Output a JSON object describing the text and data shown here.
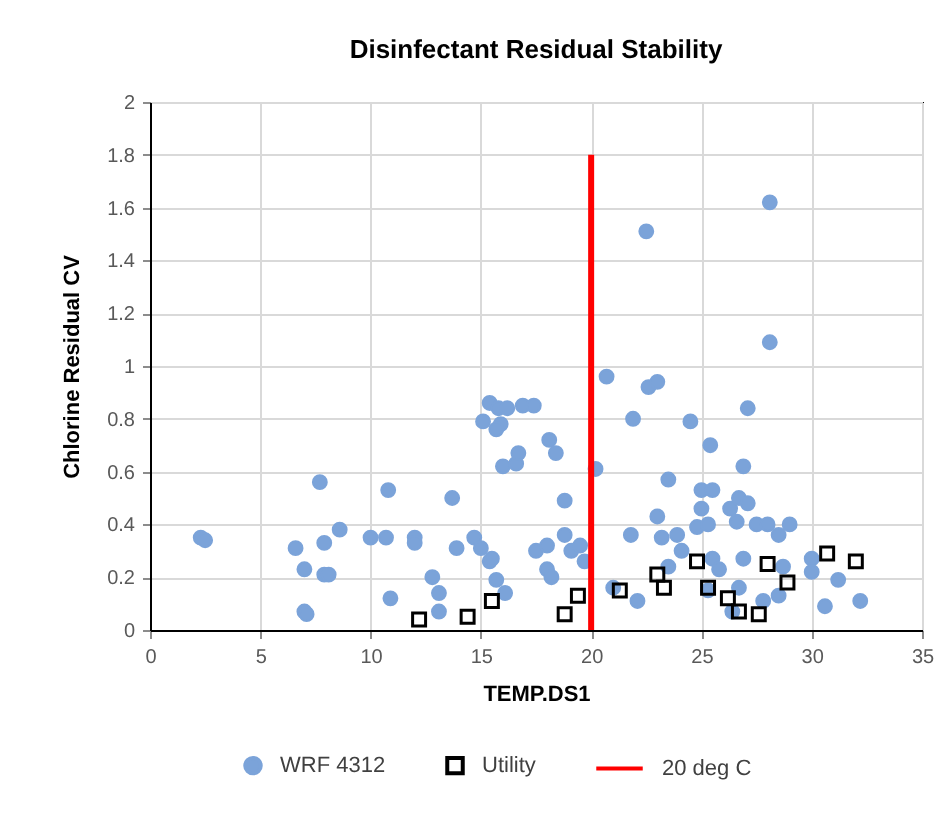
{
  "chart_data": {
    "type": "scatter",
    "title": "Disinfectant Residual Stability",
    "xlabel": "TEMP.DS1",
    "ylabel": "Chlorine Residual CV",
    "xlim": [
      0,
      35
    ],
    "ylim": [
      0,
      2
    ],
    "xticks": [
      0,
      5,
      10,
      15,
      20,
      25,
      30,
      35
    ],
    "yticks": [
      0,
      0.2,
      0.4,
      0.6,
      0.8,
      1,
      1.2,
      1.4,
      1.6,
      1.8,
      2
    ],
    "grid": true,
    "legend": "bottom",
    "series": [
      {
        "name": "WRF 4312",
        "color": "#7ba3d9",
        "marker": "circle",
        "x": [
          2.3,
          2.5,
          6.6,
          7.0,
          7.0,
          7.1,
          7.7,
          7.9,
          7.9,
          8.1,
          8.6,
          10.0,
          10.7,
          10.8,
          10.9,
          12.0,
          12.0,
          12.8,
          13.1,
          13.1,
          13.7,
          13.9,
          14.7,
          15.0,
          15.4,
          15.5,
          15.7,
          16.1,
          15.4,
          15.1,
          15.8,
          15.9,
          15.7,
          16.0,
          16.2,
          16.6,
          16.7,
          16.9,
          17.4,
          17.5,
          18.0,
          18.0,
          18.2,
          18.1,
          18.4,
          18.8,
          18.8,
          19.1,
          19.5,
          19.7,
          20.2,
          20.7,
          21.0,
          21.8,
          21.9,
          22.1,
          22.5,
          22.6,
          23.0,
          23.0,
          23.2,
          23.5,
          23.5,
          23.9,
          24.1,
          24.5,
          24.8,
          25.0,
          25.0,
          25.3,
          25.4,
          25.5,
          25.5,
          25.8,
          25.3,
          26.3,
          26.6,
          26.7,
          27.1,
          26.9,
          27.1,
          26.9,
          26.7,
          26.4,
          27.5,
          28.0,
          28.5,
          29.0,
          28.1,
          28.1,
          28.7,
          28.5,
          27.8,
          30.0,
          30.0,
          30.6,
          31.2,
          32.2
        ],
        "values": [
          0.35,
          0.34,
          0.31,
          0.23,
          0.07,
          0.06,
          0.56,
          0.33,
          0.21,
          0.21,
          0.38,
          0.35,
          0.35,
          0.53,
          0.12,
          0.35,
          0.33,
          0.2,
          0.14,
          0.07,
          0.5,
          0.31,
          0.35,
          0.31,
          0.26,
          0.27,
          0.19,
          0.14,
          0.86,
          0.79,
          0.84,
          0.78,
          0.76,
          0.62,
          0.84,
          0.63,
          0.67,
          0.85,
          0.85,
          0.3,
          0.32,
          0.23,
          0.2,
          0.72,
          0.67,
          0.49,
          0.36,
          0.3,
          0.32,
          0.26,
          0.61,
          0.96,
          0.16,
          0.36,
          0.8,
          0.11,
          1.51,
          0.92,
          0.94,
          0.43,
          0.35,
          0.24,
          0.57,
          0.36,
          0.3,
          0.79,
          0.39,
          0.46,
          0.53,
          0.4,
          0.7,
          0.53,
          0.27,
          0.23,
          0.15,
          0.46,
          0.41,
          0.5,
          0.48,
          0.62,
          0.84,
          0.27,
          0.16,
          0.07,
          0.4,
          0.4,
          0.36,
          0.4,
          1.62,
          1.09,
          0.24,
          0.13,
          0.11,
          0.27,
          0.22,
          0.09,
          0.19,
          0.11
        ]
      },
      {
        "name": "Utility",
        "color": "#000000",
        "marker": "square",
        "x": [
          12.2,
          14.4,
          15.5,
          18.8,
          19.4,
          21.3,
          23.0,
          23.3,
          24.8,
          25.3,
          26.2,
          26.7,
          27.6,
          28.0,
          28.9,
          30.7,
          32.0
        ],
        "values": [
          0.04,
          0.05,
          0.11,
          0.06,
          0.13,
          0.15,
          0.21,
          0.16,
          0.26,
          0.16,
          0.12,
          0.07,
          0.06,
          0.25,
          0.18,
          0.29,
          0.26
        ]
      },
      {
        "name": "20 deg C",
        "type": "line",
        "color": "#ff0000",
        "x": [
          20,
          20
        ],
        "values": [
          0,
          1.8
        ]
      }
    ]
  }
}
